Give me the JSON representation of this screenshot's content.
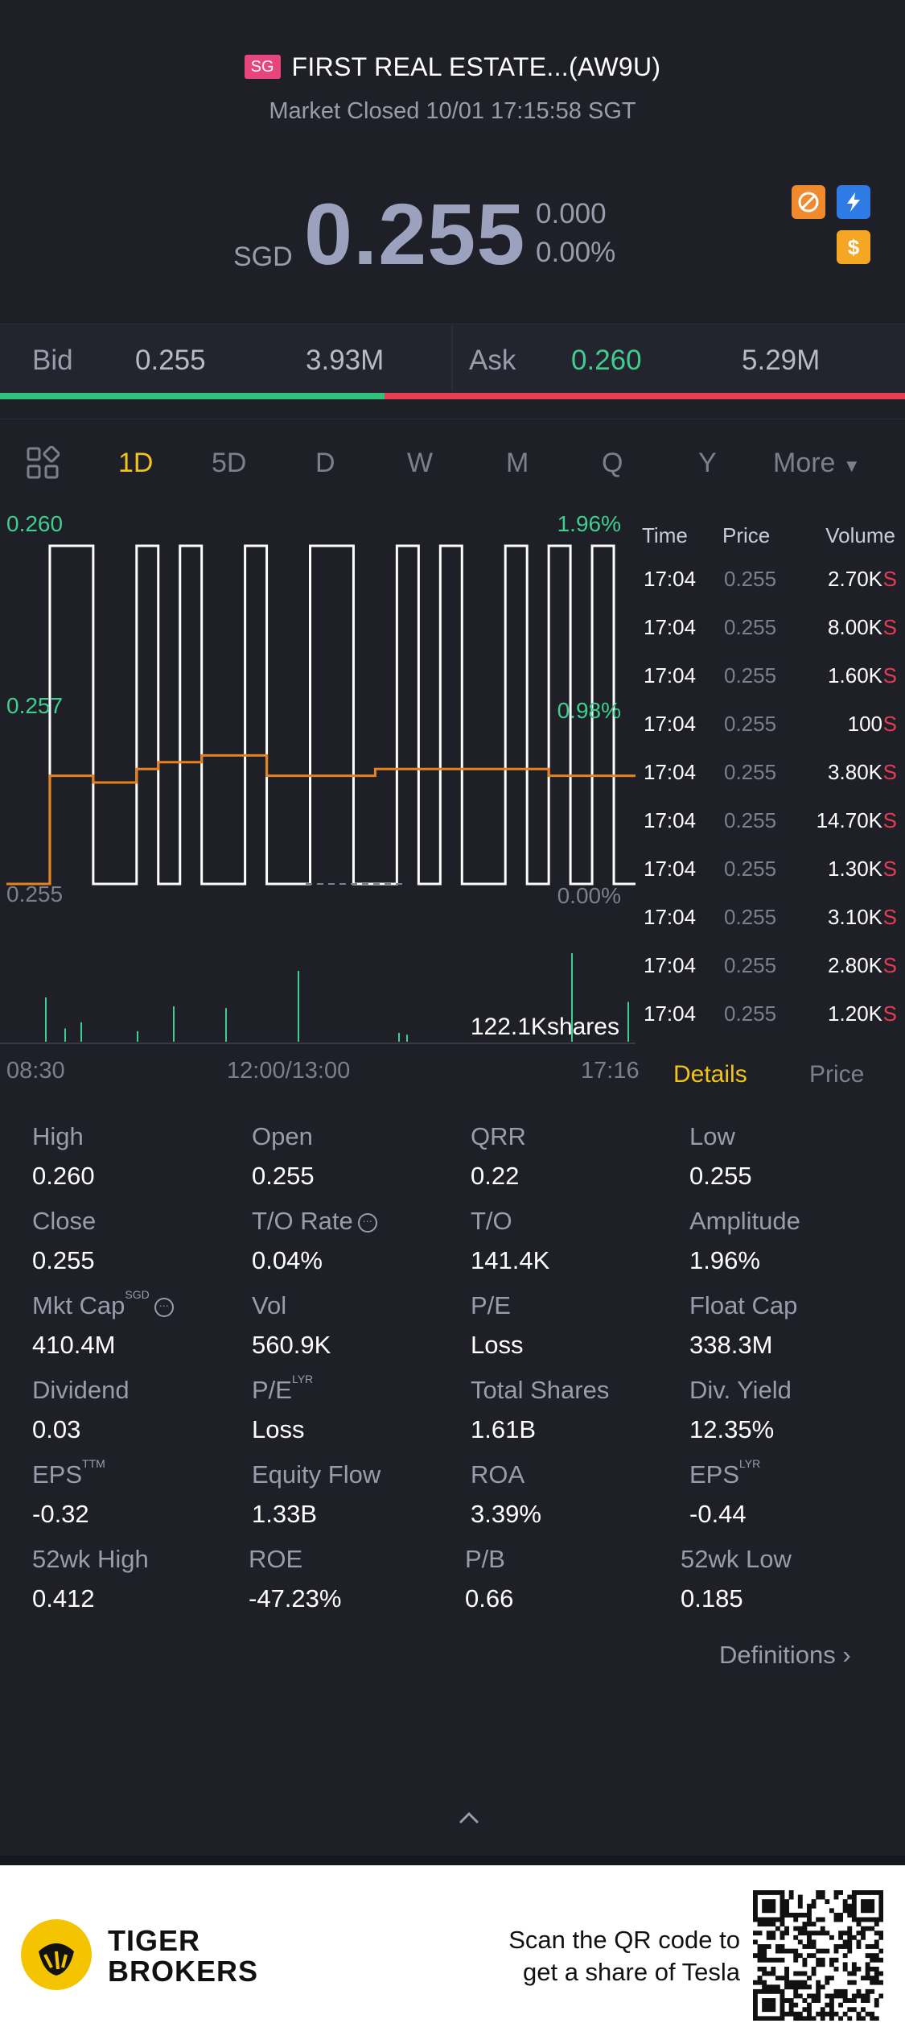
{
  "header": {
    "market_badge": "SG",
    "title": "FIRST REAL ESTATE...(AW9U)",
    "status": "Market Closed 10/01 17:15:58 SGT",
    "currency": "SGD",
    "price": "0.255",
    "change": "0.000",
    "change_pct": "0.00%",
    "icons": [
      "no-short-sell-icon",
      "flash-icon",
      "dollar-icon"
    ]
  },
  "bidask": {
    "bid_label": "Bid",
    "bid_price": "0.255",
    "bid_size": "3.93M",
    "ask_label": "Ask",
    "ask_price": "0.260",
    "ask_size": "5.29M",
    "bid_ratio": 0.425
  },
  "tabs": [
    "1D",
    "5D",
    "D",
    "W",
    "M",
    "Q",
    "Y",
    "More"
  ],
  "active_tab": "1D",
  "chart": {
    "y_top": "0.260",
    "y_mid": "0.257",
    "y_bottom": "0.255",
    "pct_top": "1.96%",
    "pct_mid": "0.98%",
    "pct_bottom": "0.00%",
    "volume_label": "122.1Kshares",
    "time_start": "08:30",
    "time_mid": "12:00/13:00",
    "time_end": "17:16"
  },
  "chart_data": {
    "type": "line",
    "title": "",
    "xlabel": "",
    "ylabel": "",
    "ylim": [
      0.255,
      0.26
    ],
    "x_ticks": [
      "08:30",
      "12:00/13:00",
      "17:16"
    ],
    "series": [
      {
        "values": [
          0.255,
          0.255,
          0.26,
          0.26,
          0.255,
          0.255,
          0.26,
          0.255,
          0.26,
          0.255,
          0.255,
          0.26,
          0.255,
          0.255,
          0.26,
          0.26,
          0.255,
          0.255,
          0.26,
          0.255,
          0.26,
          0.255,
          0.255,
          0.26,
          0.255,
          0.26,
          0.255,
          0.26,
          0.255,
          0.255
        ]
      },
      {
        "values": [
          0.255,
          0.255,
          0.2566,
          0.2566,
          0.2565,
          0.2565,
          0.2567,
          0.2568,
          0.2568,
          0.2569,
          0.2569,
          0.2569,
          0.2566,
          0.2566,
          0.2566,
          0.2566,
          0.2566,
          0.2567,
          0.2567,
          0.2567,
          0.2567,
          0.2567,
          0.2567,
          0.2567,
          0.2567,
          0.2566,
          0.2566,
          0.2566,
          0.2566,
          0.2566
        ]
      }
    ]
  },
  "trades": {
    "headers": [
      "Time",
      "Price",
      "Volume"
    ],
    "rows": [
      {
        "time": "17:04",
        "price": "0.255",
        "vol": "2.70K",
        "side": "S"
      },
      {
        "time": "17:04",
        "price": "0.255",
        "vol": "8.00K",
        "side": "S"
      },
      {
        "time": "17:04",
        "price": "0.255",
        "vol": "1.60K",
        "side": "S"
      },
      {
        "time": "17:04",
        "price": "0.255",
        "vol": "100",
        "side": "S"
      },
      {
        "time": "17:04",
        "price": "0.255",
        "vol": "3.80K",
        "side": "S"
      },
      {
        "time": "17:04",
        "price": "0.255",
        "vol": "14.70K",
        "side": "S"
      },
      {
        "time": "17:04",
        "price": "0.255",
        "vol": "1.30K",
        "side": "S"
      },
      {
        "time": "17:04",
        "price": "0.255",
        "vol": "3.10K",
        "side": "S"
      },
      {
        "time": "17:04",
        "price": "0.255",
        "vol": "2.80K",
        "side": "S"
      },
      {
        "time": "17:04",
        "price": "0.255",
        "vol": "1.20K",
        "side": "S"
      }
    ]
  },
  "detail_tabs": {
    "details": "Details",
    "price": "Price"
  },
  "stats": {
    "high": {
      "label": "High",
      "value": "0.260"
    },
    "open": {
      "label": "Open",
      "value": "0.255"
    },
    "qrr": {
      "label": "QRR",
      "value": "0.22"
    },
    "low": {
      "label": "Low",
      "value": "0.255"
    },
    "close": {
      "label": "Close",
      "value": "0.255"
    },
    "to_rate": {
      "label": "T/O Rate",
      "value": "0.04%"
    },
    "to": {
      "label": "T/O",
      "value": "141.4K"
    },
    "amplitude": {
      "label": "Amplitude",
      "value": "1.96%"
    },
    "mkt_cap": {
      "label": "Mkt Cap",
      "sup": "SGD",
      "value": "410.4M"
    },
    "vol": {
      "label": "Vol",
      "value": "560.9K"
    },
    "pe": {
      "label": "P/E",
      "value": "Loss"
    },
    "float_cap": {
      "label": "Float Cap",
      "value": "338.3M"
    },
    "dividend": {
      "label": "Dividend",
      "value": "0.03"
    },
    "pe_lyr": {
      "label": "P/E",
      "sup": "LYR",
      "value": "Loss"
    },
    "total_shares": {
      "label": "Total Shares",
      "value": "1.61B"
    },
    "div_yield": {
      "label": "Div. Yield",
      "value": "12.35%"
    },
    "eps_ttm": {
      "label": "EPS",
      "sup": "TTM",
      "value": "-0.32"
    },
    "equity_flow": {
      "label": "Equity Flow",
      "value": "1.33B"
    },
    "roa": {
      "label": "ROA",
      "value": "3.39%"
    },
    "eps_lyr": {
      "label": "EPS",
      "sup": "LYR",
      "value": "-0.44"
    },
    "wk52_high": {
      "label": "52wk High",
      "value": "0.412"
    },
    "roe": {
      "label": "ROE",
      "value": "-47.23%"
    },
    "pb": {
      "label": "P/B",
      "value": "0.66"
    },
    "wk52_low": {
      "label": "52wk Low",
      "value": "0.185"
    }
  },
  "definitions": "Definitions",
  "footer": {
    "brand1": "TIGER",
    "brand2": "BROKERS",
    "scan1": "Scan the QR code to",
    "scan2": "get a share of Tesla"
  },
  "colors": {
    "background": "#1e1f27",
    "up": "#3ecf8e",
    "down": "#e63d53",
    "accent": "#f0c419",
    "avg_line": "#e8821e"
  }
}
